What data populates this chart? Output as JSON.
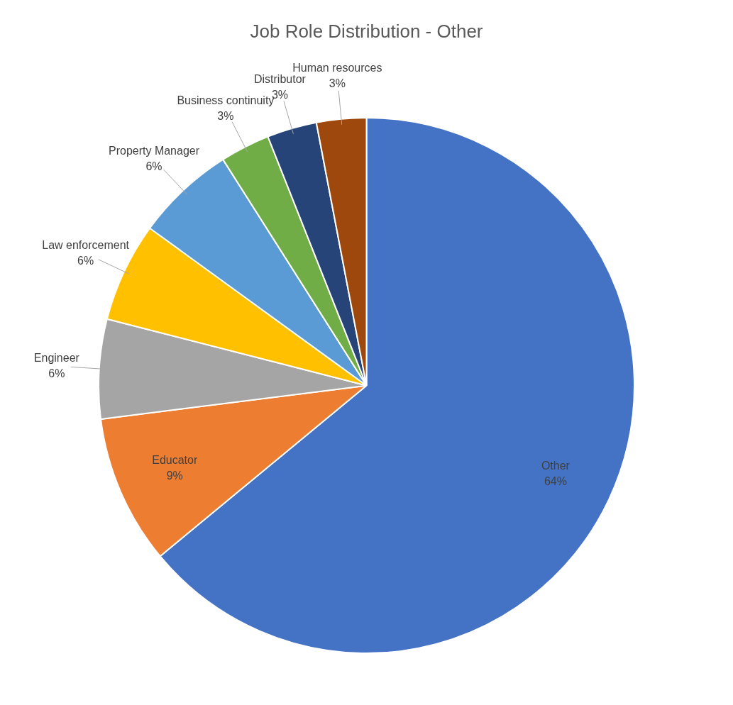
{
  "chart_data": {
    "type": "pie",
    "title": "Job Role Distribution - Other",
    "categories": [
      "Other",
      "Educator",
      "Engineer",
      "Law enforcement",
      "Property Manager",
      "Business continuity",
      "Distributor",
      "Human resources"
    ],
    "values": [
      64,
      9,
      6,
      6,
      6,
      3,
      3,
      3
    ],
    "value_labels": [
      "64%",
      "9%",
      "6%",
      "6%",
      "6%",
      "3%",
      "3%",
      "3%"
    ],
    "colors": [
      "#4472c4",
      "#ed7d31",
      "#a5a5a5",
      "#ffc000",
      "#5b9bd5",
      "#70ad47",
      "#264478",
      "#9e480e"
    ],
    "legend": false
  }
}
